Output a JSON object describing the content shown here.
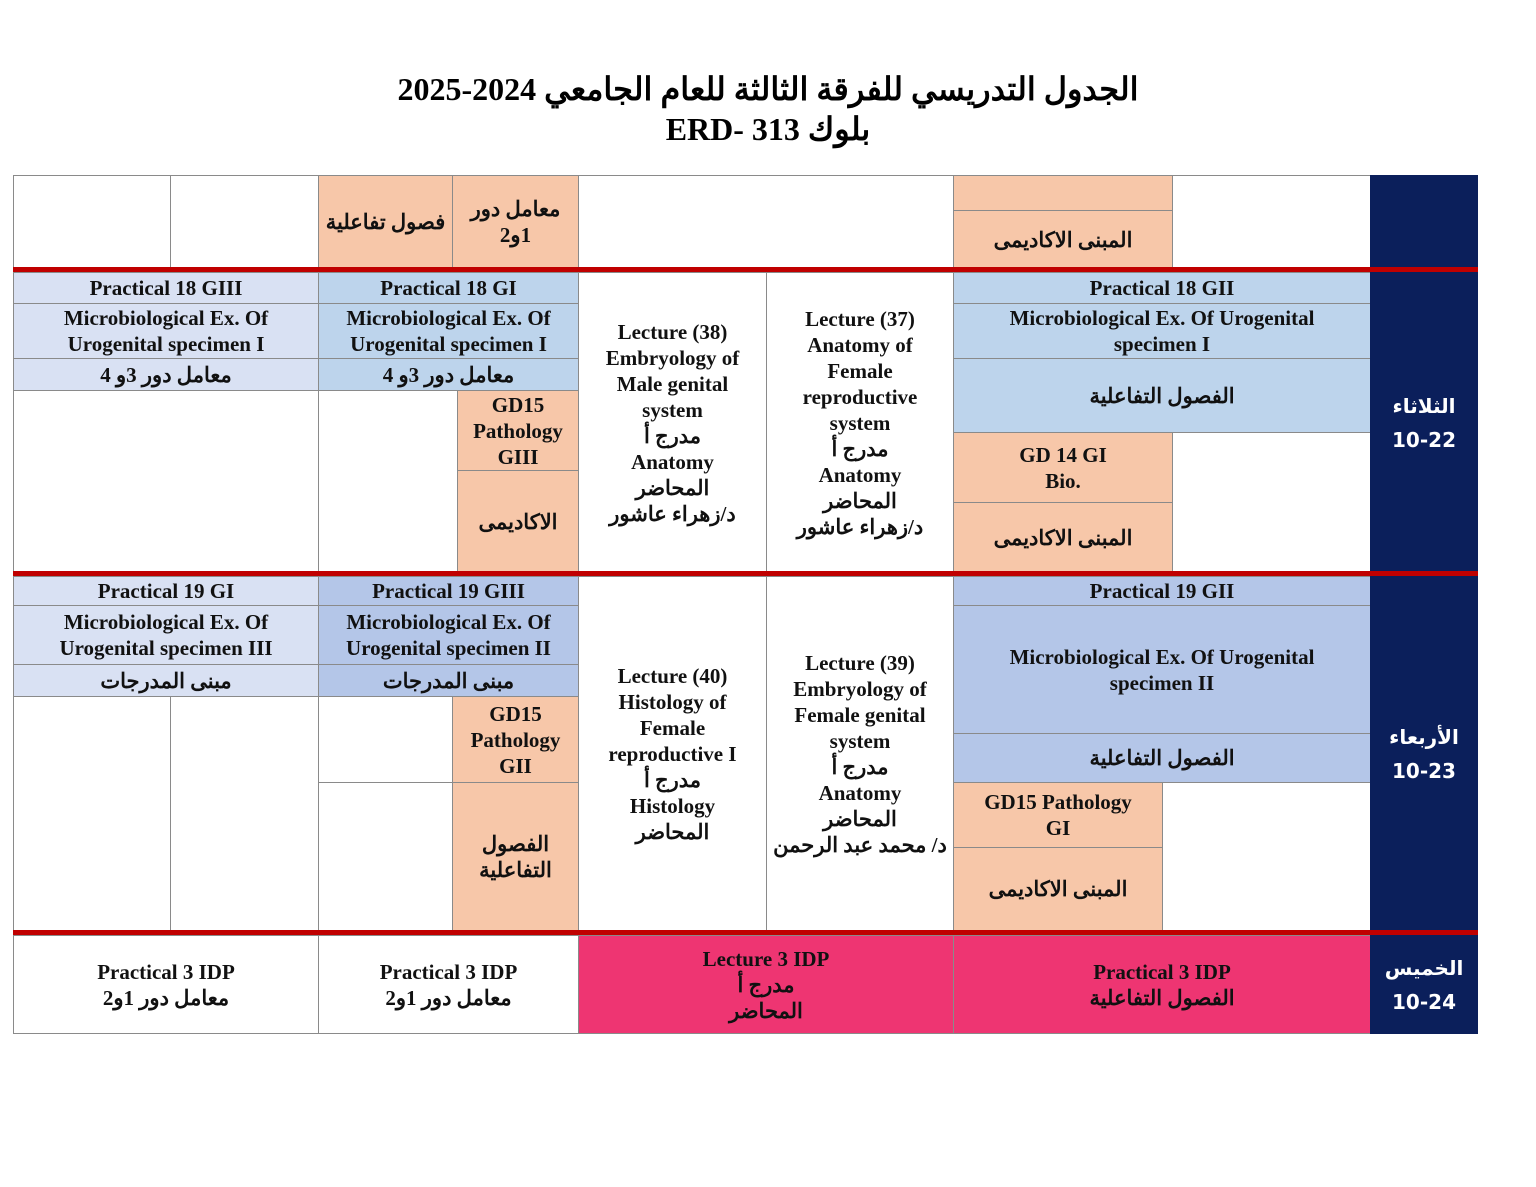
{
  "title": {
    "line1": "الجدول التدريسي للفرقة الثالثة للعام الجامعي 2024-2025",
    "line2": "ERD- 313 بلوك"
  },
  "colors": {
    "peach": "#f7c7a9",
    "light_blue": "#bdd4ec",
    "lavender": "#d9e1f3",
    "periwinkle": "#b4c6e8",
    "pink": "#ee3572",
    "navy": "#0b1f5b",
    "separator_red": "#c00000"
  },
  "top_row": {
    "c1": "فصول تفاعلية",
    "c2": "معامل دور\n1و2",
    "c3": "المبنى الاكاديمى"
  },
  "tuesday": {
    "day": "الثلاثاء\n10-22",
    "g3_title": "Practical 18 GIII",
    "g3_subject": "Microbiological Ex. Of\nUrogenital specimen I",
    "g3_place": "معامل دور 3و 4",
    "g1_title": "Practical 18 GI",
    "g1_subject": "Microbiological Ex. Of\nUrogenital specimen I",
    "g1_place": "معامل دور 3و 4",
    "gd15": "GD15\nPathology\nGIII",
    "gd15_place": "الاكاديمى",
    "lecture38": "Lecture (38)\nEmbryology of\nMale genital\nsystem\nمدرج أ\nAnatomy\nالمحاضر\nد/زهراء عاشور",
    "lecture37": "Lecture (37)\nAnatomy of\nFemale\nreproductive\nsystem\nمدرج أ\nAnatomy\nالمحاضر\nد/زهراء عاشور",
    "g2_title": "Practical 18 GII",
    "g2_subject": "Microbiological Ex. Of Urogenital\nspecimen I",
    "g2_place": "الفصول التفاعلية",
    "gd14": "GD 14 GI\nBio.",
    "gd14_place": "المبنى الاكاديمى"
  },
  "wednesday": {
    "day": "الأربعاء\n10-23",
    "g1_title": "Practical 19 GI",
    "g1_subject": "Microbiological Ex. Of\nUrogenital specimen III",
    "g1_place": "مبنى المدرجات",
    "g3_title": "Practical 19 GIII",
    "g3_subject": "Microbiological Ex. Of\nUrogenital specimen II",
    "g3_place": "مبنى المدرجات",
    "gd15": "GD15\nPathology\nGII",
    "gd15_place": "الفصول\nالتفاعلية",
    "lecture40": "Lecture (40)\nHistology of\nFemale\nreproductive  I\nمدرج أ\nHistology\nالمحاضر",
    "lecture39": "Lecture (39)\nEmbryology of\nFemale genital\nsystem\nمدرج أ\nAnatomy\nالمحاضر\nد/ محمد عبد الرحمن",
    "g2_title": "Practical 19 GII",
    "g2_subject": "Microbiological Ex. Of Urogenital\nspecimen II",
    "g2_place": "الفصول التفاعلية",
    "gd15_gi": "GD15 Pathology\nGI",
    "gd15_gi_place": "المبنى الاكاديمى"
  },
  "thursday": {
    "day": "الخميس\n10-24",
    "c1": "Practical 3 IDP\nمعامل دور 1و2",
    "c2": "Practical 3 IDP\nمعامل دور 1و2",
    "c3": "Lecture 3 IDP\nمدرج أ\nالمحاضر",
    "c4": "Practical 3 IDP\nالفصول التفاعلية"
  }
}
